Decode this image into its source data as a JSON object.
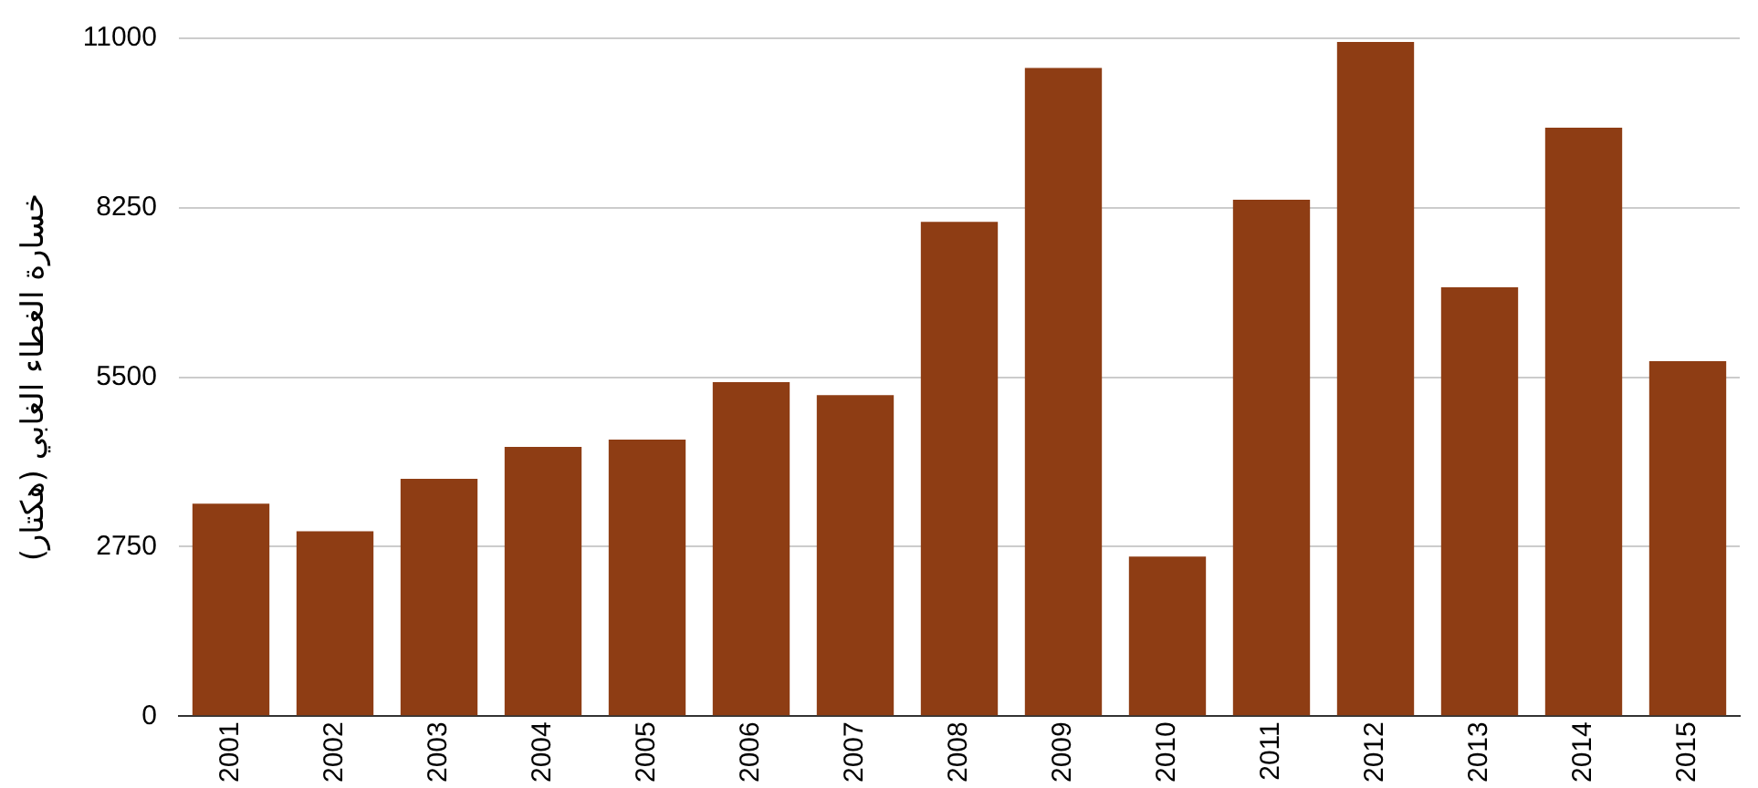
{
  "chart_data": {
    "type": "bar",
    "ylabel": "خسارة الغطاء الغابي (هكتار)",
    "categories": [
      "2001",
      "2002",
      "2003",
      "2004",
      "2005",
      "2006",
      "2007",
      "2008",
      "2009",
      "2010",
      "2011",
      "2012",
      "2013",
      "2014",
      "2015"
    ],
    "values": [
      3450,
      3000,
      3850,
      4370,
      4490,
      5420,
      5210,
      8020,
      10520,
      2590,
      8380,
      10940,
      6960,
      9550,
      5760
    ],
    "color": "#8e3d14",
    "ylim": [
      0,
      11000
    ],
    "yticks": [
      0,
      2750,
      5500,
      8250,
      11000
    ],
    "grid": "y",
    "legend": false
  }
}
